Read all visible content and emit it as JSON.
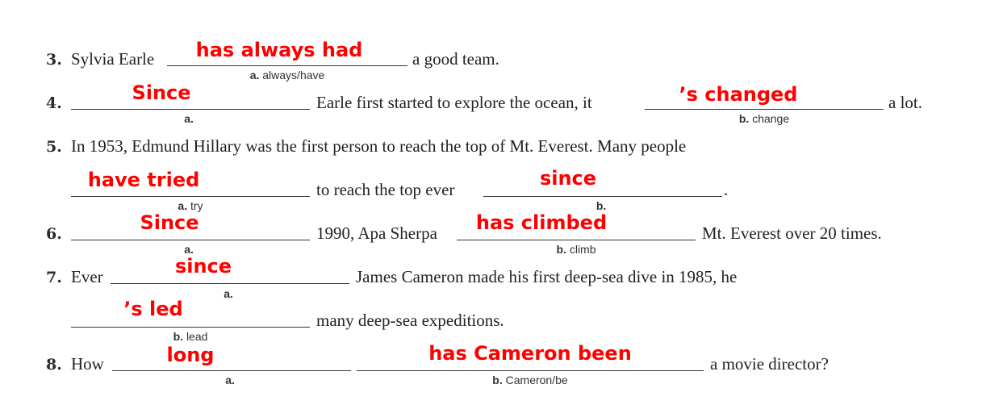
{
  "items": [
    {
      "number": "3.",
      "text_1": "Sylvia Earle",
      "blank_a": {
        "letter": "a.",
        "hint": "always/have",
        "answer": "has always had"
      },
      "text_2": "a good team."
    },
    {
      "number": "4.",
      "blank_a": {
        "letter": "a.",
        "hint": "",
        "answer": "Since"
      },
      "text_1": "Earle first started to explore the ocean, it",
      "blank_b": {
        "letter": "b.",
        "hint": "change",
        "answer": "’s changed"
      },
      "text_2": "a lot."
    },
    {
      "number": "5.",
      "text_1": "In 1953, Edmund Hillary was the first person to reach the top of Mt. Everest. Many people",
      "blank_a": {
        "letter": "a.",
        "hint": "try",
        "answer": "have tried"
      },
      "text_2": "to reach the top ever",
      "blank_b": {
        "letter": "b.",
        "hint": "",
        "answer": "since"
      },
      "text_3": "."
    },
    {
      "number": "6.",
      "blank_a": {
        "letter": "a.",
        "hint": "",
        "answer": "Since"
      },
      "text_1": "1990, Apa Sherpa",
      "blank_b": {
        "letter": "b.",
        "hint": "climb",
        "answer": "has climbed"
      },
      "text_2": "Mt. Everest over 20 times."
    },
    {
      "number": "7.",
      "text_1": "Ever",
      "blank_a": {
        "letter": "a.",
        "hint": "",
        "answer": "since"
      },
      "text_2": "James Cameron made his first deep-sea dive in 1985, he",
      "blank_b": {
        "letter": "b.",
        "hint": "lead",
        "answer": "’s led"
      },
      "text_3": "many deep-sea expeditions."
    },
    {
      "number": "8.",
      "text_1": "How",
      "blank_a": {
        "letter": "a.",
        "hint": "",
        "answer": "long"
      },
      "blank_b": {
        "letter": "b.",
        "hint": "Cameron/be",
        "answer": "has Cameron been"
      },
      "text_2": "a movie director?"
    }
  ]
}
